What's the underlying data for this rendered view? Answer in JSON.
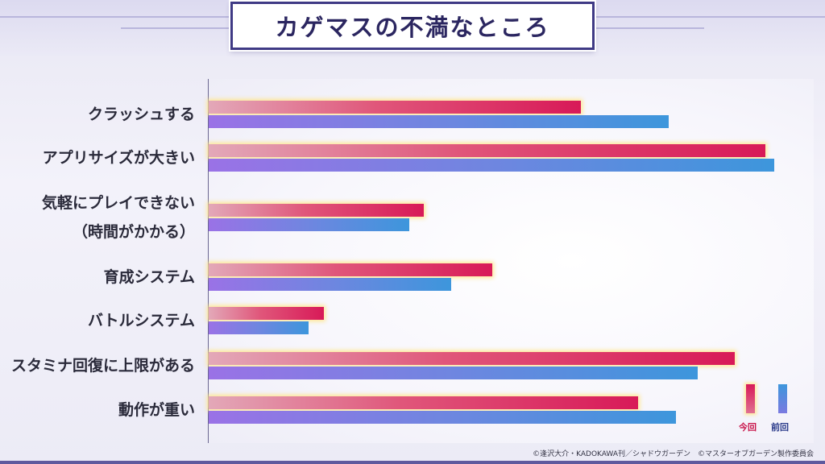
{
  "title": "カゲマスの不満なところ",
  "chart_data": {
    "type": "bar",
    "orientation": "horizontal",
    "categories": [
      "クラッシュする",
      "アプリサイズが大きい",
      "気軽にプレイできない\n（時間がかかる）",
      "育成システム",
      "バトルシステム",
      "スタミナ回復に上限がある",
      "動作が重い"
    ],
    "series": [
      {
        "name": "今回",
        "color": "#d81a58",
        "values": [
          462,
          691,
          267,
          352,
          143,
          653,
          533
        ]
      },
      {
        "name": "前回",
        "color": "#3d96dc",
        "values": [
          571,
          702,
          249,
          301,
          124,
          607,
          580
        ]
      }
    ],
    "xlim": [
      0,
      752
    ],
    "legend_position": "bottom-right",
    "grid": false
  },
  "legend": {
    "current_label": "今回",
    "previous_label": "前回",
    "current_color": "#c8154a",
    "previous_color": "#2a3a8a"
  },
  "copyright": "©逢沢大介・KADOKAWA刊／シャドウガーデン　©マスターオブガーデン製作委員会"
}
